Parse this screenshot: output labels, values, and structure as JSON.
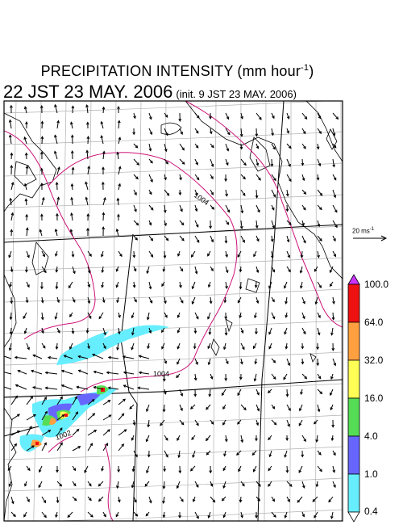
{
  "title": {
    "line1_main": "PRECIPITATION INTENSITY (mm hour",
    "line1_exp": "-1",
    "line1_close": ")",
    "line2_main": "22 JST 23 MAY. 2006",
    "line2_sub": "(init. 9 JST 23 MAY. 2006)"
  },
  "reference_vector": {
    "value": "20 ms",
    "exp": "-1"
  },
  "isobar_labels": [
    "1004",
    "1004",
    "1002"
  ],
  "legend": {
    "labels": [
      "100.0",
      "64.0",
      "32.0",
      "16.0",
      "4.0",
      "1.0",
      "0.4"
    ],
    "colors": [
      "#cc33ff",
      "#ee1111",
      "#ffa040",
      "#ffff55",
      "#55dd55",
      "#6666ff",
      "#66eeff",
      "#ffffff"
    ]
  },
  "colors": {
    "isobar": "#cc1177",
    "grid": "#b0b0b0",
    "coast": "#000000",
    "precip_light": "#66eeff"
  }
}
